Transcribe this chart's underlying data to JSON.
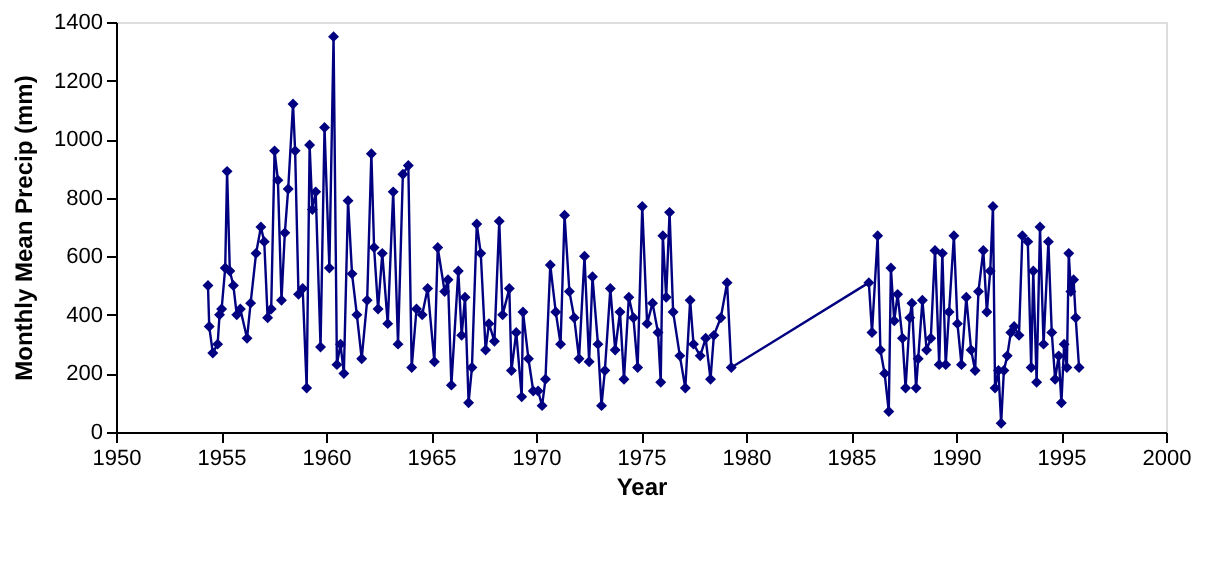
{
  "chart_data": {
    "type": "line",
    "xlabel": "Year",
    "ylabel": "Monthly Mean Precip (mm)",
    "xlim": [
      1950,
      2000
    ],
    "xticks": [
      1950,
      1955,
      1960,
      1965,
      1970,
      1975,
      1980,
      1985,
      1990,
      1995,
      2000
    ],
    "ylim": [
      0,
      1400
    ],
    "yticks": [
      0,
      200,
      400,
      600,
      800,
      1000,
      1200,
      1400
    ],
    "grid": false,
    "marker": "diamond",
    "line_style": "solid",
    "series": [
      {
        "color": "#000080",
        "x": [
          1954.38,
          1954.44,
          1954.61,
          1954.84,
          1954.93,
          1955.03,
          1955.2,
          1955.29,
          1955.42,
          1955.59,
          1955.75,
          1955.92,
          1956.24,
          1956.41,
          1956.67,
          1956.9,
          1957.06,
          1957.22,
          1957.39,
          1957.55,
          1957.71,
          1957.88,
          1958.04,
          1958.2,
          1958.43,
          1958.53,
          1958.69,
          1958.89,
          1959.08,
          1959.22,
          1959.35,
          1959.51,
          1959.74,
          1959.93,
          1960.16,
          1960.36,
          1960.52,
          1960.69,
          1960.85,
          1961.05,
          1961.24,
          1961.47,
          1961.7,
          1961.96,
          1962.16,
          1962.29,
          1962.48,
          1962.68,
          1962.94,
          1963.2,
          1963.43,
          1963.66,
          1963.92,
          1964.08,
          1964.31,
          1964.58,
          1964.84,
          1965.16,
          1965.32,
          1965.65,
          1965.81,
          1965.97,
          1966.3,
          1966.46,
          1966.62,
          1966.79,
          1966.95,
          1967.18,
          1967.37,
          1967.6,
          1967.76,
          1968.02,
          1968.25,
          1968.41,
          1968.73,
          1968.83,
          1969.06,
          1969.32,
          1969.38,
          1969.64,
          1969.87,
          1970.1,
          1970.29,
          1970.45,
          1970.68,
          1970.94,
          1971.17,
          1971.36,
          1971.59,
          1971.82,
          1972.05,
          1972.31,
          1972.53,
          1972.69,
          1972.95,
          1973.12,
          1973.28,
          1973.54,
          1973.77,
          1974.0,
          1974.19,
          1974.42,
          1974.64,
          1974.84,
          1975.06,
          1975.29,
          1975.55,
          1975.81,
          1975.94,
          1976.04,
          1976.2,
          1976.36,
          1976.53,
          1976.85,
          1977.11,
          1977.34,
          1977.5,
          1977.82,
          1978.08,
          1978.31,
          1978.47,
          1978.8,
          1979.1,
          1979.3,
          1985.85,
          1986.0,
          1986.27,
          1986.4,
          1986.6,
          1986.8,
          1986.9,
          1987.06,
          1987.22,
          1987.45,
          1987.6,
          1987.8,
          1987.9,
          1988.1,
          1988.2,
          1988.4,
          1988.6,
          1988.8,
          1989.0,
          1989.2,
          1989.35,
          1989.51,
          1989.67,
          1989.9,
          1990.07,
          1990.26,
          1990.49,
          1990.72,
          1990.91,
          1991.07,
          1991.3,
          1991.47,
          1991.63,
          1991.76,
          1991.86,
          1992.02,
          1992.15,
          1992.28,
          1992.44,
          1992.61,
          1992.77,
          1993.0,
          1993.16,
          1993.42,
          1993.58,
          1993.68,
          1993.84,
          1994.0,
          1994.17,
          1994.4,
          1994.56,
          1994.72,
          1994.89,
          1995.02,
          1995.15,
          1995.28,
          1995.37,
          1995.47,
          1995.6,
          1995.7,
          1995.86
        ],
        "values": [
          500,
          360,
          270,
          300,
          400,
          420,
          560,
          890,
          550,
          500,
          400,
          420,
          320,
          440,
          610,
          700,
          650,
          390,
          420,
          960,
          860,
          450,
          680,
          830,
          1120,
          960,
          470,
          490,
          150,
          980,
          760,
          820,
          290,
          1040,
          560,
          1350,
          230,
          300,
          200,
          790,
          540,
          400,
          250,
          450,
          950,
          630,
          420,
          610,
          370,
          820,
          300,
          880,
          910,
          220,
          420,
          400,
          490,
          240,
          630,
          480,
          520,
          160,
          550,
          330,
          460,
          100,
          220,
          710,
          610,
          280,
          370,
          310,
          720,
          400,
          490,
          210,
          340,
          120,
          410,
          250,
          140,
          140,
          90,
          180,
          570,
          410,
          300,
          740,
          480,
          390,
          250,
          600,
          240,
          530,
          300,
          90,
          210,
          490,
          280,
          410,
          180,
          460,
          390,
          220,
          770,
          370,
          440,
          340,
          170,
          670,
          460,
          750,
          410,
          260,
          150,
          450,
          300,
          260,
          320,
          180,
          330,
          390,
          510,
          220,
          510,
          340,
          670,
          280,
          200,
          70,
          560,
          380,
          470,
          320,
          150,
          390,
          440,
          150,
          250,
          450,
          280,
          320,
          620,
          230,
          610,
          230,
          410,
          670,
          370,
          230,
          460,
          280,
          210,
          480,
          620,
          410,
          550,
          770,
          150,
          210,
          30,
          210,
          260,
          340,
          360,
          330,
          670,
          650,
          220,
          550,
          170,
          700,
          300,
          650,
          340,
          180,
          260,
          100,
          300,
          220,
          610,
          480,
          520,
          390,
          220
        ]
      }
    ]
  }
}
